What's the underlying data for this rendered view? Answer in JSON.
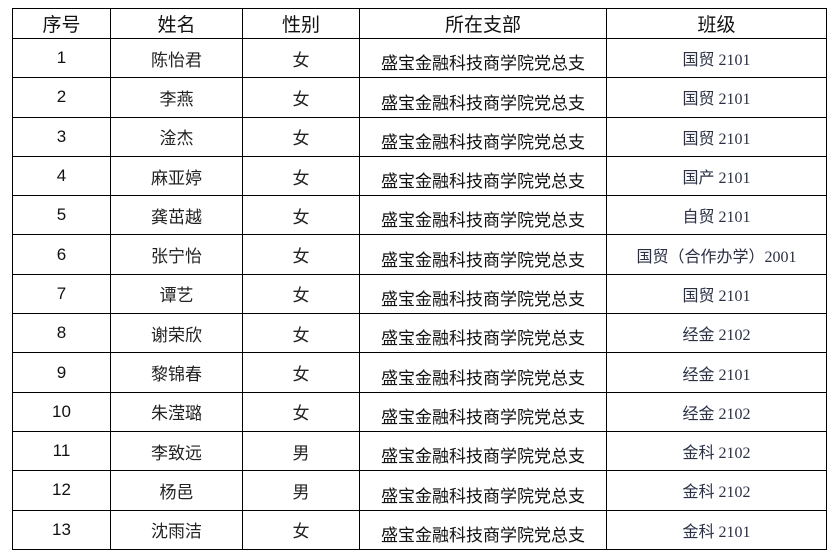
{
  "headers": [
    "序号",
    "姓名",
    "性别",
    "所在支部",
    "班级"
  ],
  "rows": [
    [
      "1",
      "陈怡君",
      "女",
      "盛宝金融科技商学院党总支",
      "国贸 2101"
    ],
    [
      "2",
      "李燕",
      "女",
      "盛宝金融科技商学院党总支",
      "国贸 2101"
    ],
    [
      "3",
      "淦杰",
      "女",
      "盛宝金融科技商学院党总支",
      "国贸 2101"
    ],
    [
      "4",
      "麻亚婷",
      "女",
      "盛宝金融科技商学院党总支",
      "国产 2101"
    ],
    [
      "5",
      "龚茁越",
      "女",
      "盛宝金融科技商学院党总支",
      "自贸 2101"
    ],
    [
      "6",
      "张宁怡",
      "女",
      "盛宝金融科技商学院党总支",
      "国贸（合作办学）2001"
    ],
    [
      "7",
      "谭艺",
      "女",
      "盛宝金融科技商学院党总支",
      "国贸 2101"
    ],
    [
      "8",
      "谢荣欣",
      "女",
      "盛宝金融科技商学院党总支",
      "经金 2102"
    ],
    [
      "9",
      "黎锦春",
      "女",
      "盛宝金融科技商学院党总支",
      "经金 2101"
    ],
    [
      "10",
      "朱滢璐",
      "女",
      "盛宝金融科技商学院党总支",
      "经金 2102"
    ],
    [
      "11",
      "李致远",
      "男",
      "盛宝金融科技商学院党总支",
      "金科 2102"
    ],
    [
      "12",
      "杨邑",
      "男",
      "盛宝金融科技商学院党总支",
      "金科 2102"
    ],
    [
      "13",
      "沈雨洁",
      "女",
      "盛宝金融科技商学院党总支",
      "金科 2101"
    ]
  ]
}
